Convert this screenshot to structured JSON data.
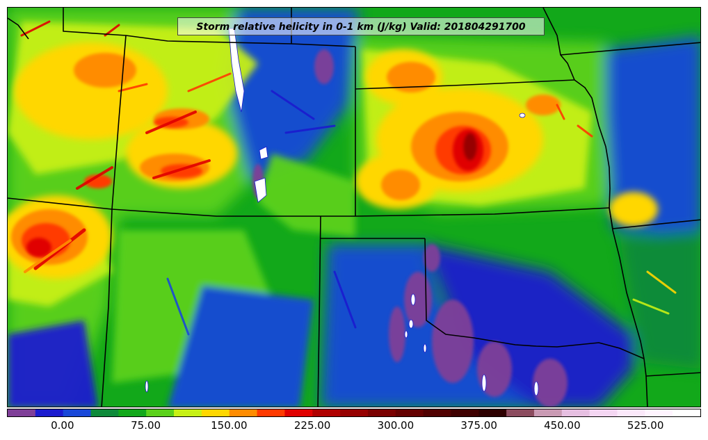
{
  "map": {
    "title": "Storm relative helicity in 0-1 km (J/kg) Valid: 201804291700"
  },
  "colorbar": {
    "labels": [
      {
        "text": "0.00",
        "value": 0
      },
      {
        "text": "75.00",
        "value": 75
      },
      {
        "text": "150.00",
        "value": 150
      },
      {
        "text": "225.00",
        "value": 225
      },
      {
        "text": "300.00",
        "value": 300
      },
      {
        "text": "375.00",
        "value": 375
      },
      {
        "text": "450.00",
        "value": 450
      },
      {
        "text": "525.00",
        "value": 525
      }
    ],
    "range": [
      -50,
      575
    ],
    "bins": [
      {
        "min": -50,
        "max": -25,
        "color": "#7f3f98"
      },
      {
        "min": -25,
        "max": 0,
        "color": "#1b1bcf"
      },
      {
        "min": 0,
        "max": 25,
        "color": "#1948d8"
      },
      {
        "min": 25,
        "max": 50,
        "color": "#0e8a3a"
      },
      {
        "min": 50,
        "max": 75,
        "color": "#12a81a"
      },
      {
        "min": 75,
        "max": 100,
        "color": "#5bd11a"
      },
      {
        "min": 100,
        "max": 125,
        "color": "#c7f015"
      },
      {
        "min": 125,
        "max": 150,
        "color": "#ffd700"
      },
      {
        "min": 150,
        "max": 175,
        "color": "#ff8c00"
      },
      {
        "min": 175,
        "max": 200,
        "color": "#ff3a00"
      },
      {
        "min": 200,
        "max": 225,
        "color": "#e00000"
      },
      {
        "min": 225,
        "max": 250,
        "color": "#b00000"
      },
      {
        "min": 250,
        "max": 275,
        "color": "#960000"
      },
      {
        "min": 275,
        "max": 300,
        "color": "#7a0000"
      },
      {
        "min": 300,
        "max": 325,
        "color": "#640000"
      },
      {
        "min": 325,
        "max": 350,
        "color": "#500000"
      },
      {
        "min": 350,
        "max": 375,
        "color": "#3f0000"
      },
      {
        "min": 375,
        "max": 400,
        "color": "#2d0000"
      },
      {
        "min": 400,
        "max": 425,
        "color": "#8b4b5e"
      },
      {
        "min": 425,
        "max": 450,
        "color": "#c99ab3"
      },
      {
        "min": 450,
        "max": 475,
        "color": "#e6bfe1"
      },
      {
        "min": 475,
        "max": 500,
        "color": "#f4d6f2"
      },
      {
        "min": 500,
        "max": 525,
        "color": "#fbe8fa"
      },
      {
        "min": 525,
        "max": 550,
        "color": "#fff4ff"
      },
      {
        "min": 550,
        "max": 575,
        "color": "#ffffff"
      }
    ]
  }
}
